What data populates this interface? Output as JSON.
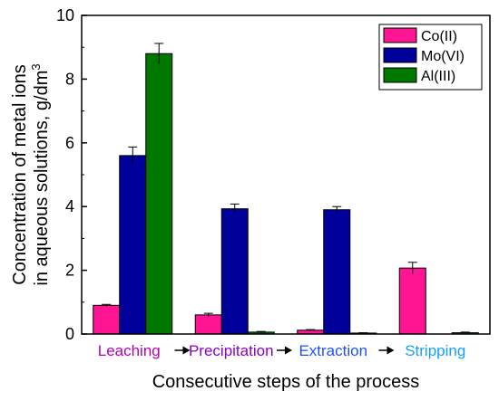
{
  "chart_data": {
    "type": "bar",
    "categories": [
      "Leaching",
      "Precipitation",
      "Extraction",
      "Stripping"
    ],
    "category_colors": [
      "#b400b4",
      "#8a00c8",
      "#1e50ff",
      "#14a0ff"
    ],
    "series": [
      {
        "name": "Co(II)",
        "color": "#ff1493",
        "values": [
          0.9,
          0.6,
          0.12,
          2.07
        ],
        "errors": [
          0.03,
          0.05,
          0.02,
          0.18
        ]
      },
      {
        "name": "Mo(VI)",
        "color": "#00009a",
        "values": [
          5.6,
          3.93,
          3.9,
          0.0
        ],
        "errors": [
          0.27,
          0.15,
          0.1,
          0.0
        ]
      },
      {
        "name": "Al(III)",
        "color": "#007800",
        "values": [
          8.8,
          0.06,
          0.03,
          0.04
        ],
        "errors": [
          0.32,
          0.02,
          0.01,
          0.02
        ]
      }
    ],
    "xlabel": "Consecutive steps of the process",
    "ylabel_line1": "Concentration of metal ions",
    "ylabel_line2_prefix": "in aqueous solutions, g/dm",
    "ylabel_line2_sup": "3",
    "ylim": [
      0,
      10
    ],
    "yticks": [
      "0",
      "2",
      "4",
      "6",
      "8",
      "10"
    ],
    "legend_position": "top-right",
    "grid": false
  }
}
